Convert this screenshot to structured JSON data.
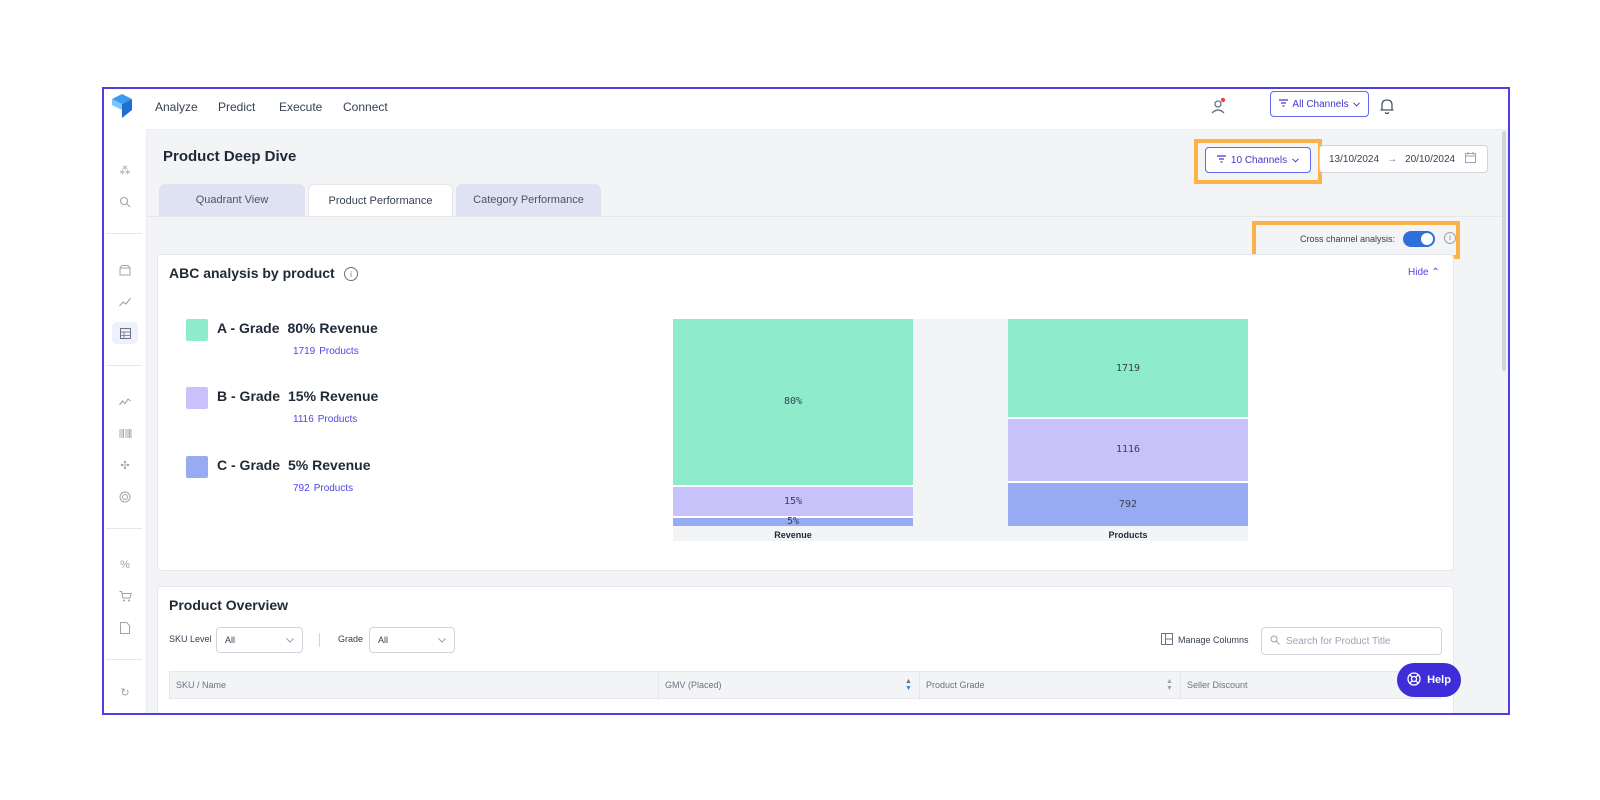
{
  "topnav": {
    "items": [
      "Analyze",
      "Predict",
      "Execute",
      "Connect"
    ],
    "channels_button": "All Channels"
  },
  "page": {
    "title": "Product Deep Dive",
    "channels_filter": "10 Channels",
    "date_from": "13/10/2024",
    "date_arrow": "→",
    "date_to": "20/10/2024"
  },
  "tabs": [
    {
      "label": "Quadrant View",
      "active": false
    },
    {
      "label": "Product Performance",
      "active": true
    },
    {
      "label": "Category Performance",
      "active": false
    }
  ],
  "cross_channel": {
    "label": "Cross channel analysis:",
    "enabled": true
  },
  "abc": {
    "title": "ABC analysis by product",
    "hide_label": "Hide",
    "grades": [
      {
        "name": "A - Grade",
        "revenue": "80% Revenue",
        "count": "1719",
        "count_suffix": "Products",
        "color": "#8eebcb"
      },
      {
        "name": "B - Grade",
        "revenue": "15% Revenue",
        "count": "1116",
        "count_suffix": "Products",
        "color": "#c9c1fa"
      },
      {
        "name": "C - Grade",
        "revenue": "5% Revenue",
        "count": "792",
        "count_suffix": "Products",
        "color": "#98aaf2"
      }
    ]
  },
  "chart_data": {
    "type": "bar",
    "stacked": true,
    "normalized": true,
    "categories": [
      "Revenue",
      "Products"
    ],
    "series": [
      {
        "name": "A - Grade",
        "values": [
          80,
          1719
        ],
        "labels": [
          "80%",
          "1719"
        ],
        "color": "#8eebcb"
      },
      {
        "name": "B - Grade",
        "values": [
          15,
          1116
        ],
        "labels": [
          "15%",
          "1116"
        ],
        "color": "#c9c1fa"
      },
      {
        "name": "C - Grade",
        "values": [
          5,
          792
        ],
        "labels": [
          "5%",
          "792"
        ],
        "color": "#98aaf2"
      }
    ]
  },
  "overview": {
    "title": "Product Overview",
    "sku_level_label": "SKU Level",
    "sku_level_value": "All",
    "grade_label": "Grade",
    "grade_value": "All",
    "manage_columns": "Manage Columns",
    "search_placeholder": "Search for Product Title",
    "columns": [
      "SKU / Name",
      "GMV (Placed)",
      "Product Grade",
      "Seller Discount"
    ]
  },
  "help": {
    "label": "Help"
  },
  "icons": {
    "logo": "brand-logo",
    "filter": "filter-icon",
    "bell": "bell-icon",
    "calendar": "calendar-icon",
    "info": "info-icon",
    "search": "search-icon",
    "columns": "columns-icon",
    "help": "help-icon"
  }
}
